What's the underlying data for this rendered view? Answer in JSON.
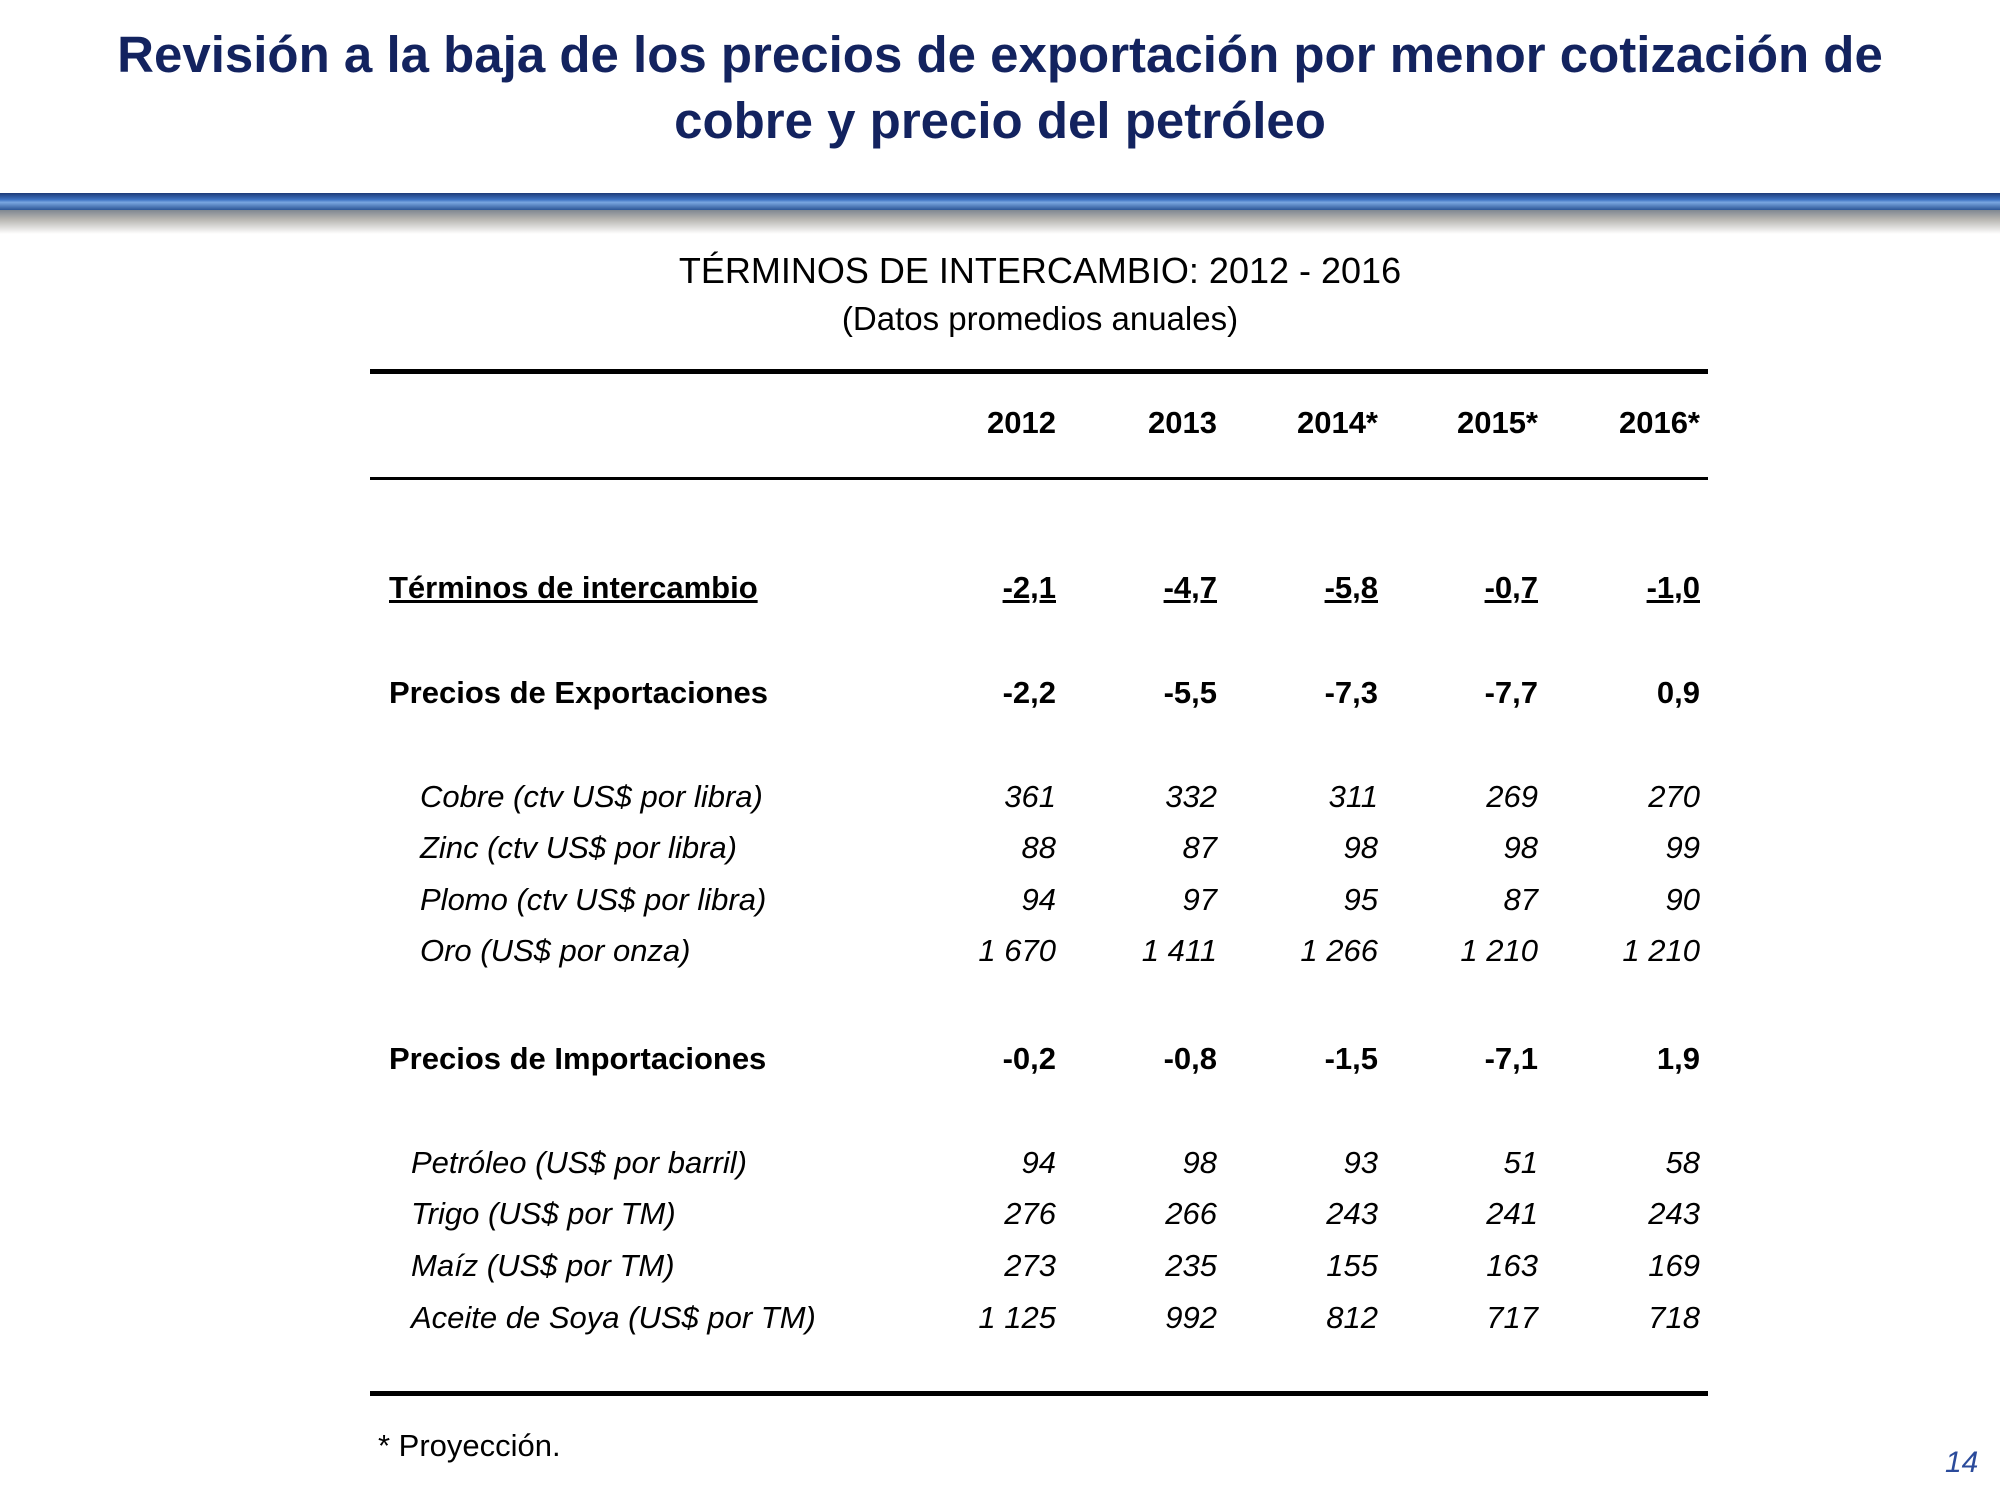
{
  "title_line1": "Revisión a la baja de los precios de exportación por menor cotización de",
  "title_line2": "cobre y precio del petróleo",
  "table": {
    "title": "TÉRMINOS DE INTERCAMBIO: 2012 - 2016",
    "subtitle": "(Datos promedios anuales)",
    "columns": [
      "2012",
      "2013",
      "2014*",
      "2015*",
      "2016*"
    ],
    "rows": [
      {
        "label": "Términos de intercambio",
        "values": [
          "-2,1",
          "-4,7",
          "-5,8",
          "-0,7",
          "-1,0"
        ]
      },
      {
        "label": "Precios de Exportaciones",
        "values": [
          "-2,2",
          "-5,5",
          "-7,3",
          "-7,7",
          "0,9"
        ]
      },
      {
        "label": "Cobre (ctv US$ por libra)",
        "values": [
          "361",
          "332",
          "311",
          "269",
          "270"
        ]
      },
      {
        "label": "Zinc (ctv US$ por libra)",
        "values": [
          "88",
          "87",
          "98",
          "98",
          "99"
        ]
      },
      {
        "label": "Plomo (ctv US$ por libra)",
        "values": [
          "94",
          "97",
          "95",
          "87",
          "90"
        ]
      },
      {
        "label": "Oro (US$ por onza)",
        "values": [
          "1 670",
          "1 411",
          "1 266",
          "1 210",
          "1 210"
        ]
      },
      {
        "label": "Precios de Importaciones",
        "values": [
          "-0,2",
          "-0,8",
          "-1,5",
          "-7,1",
          "1,9"
        ]
      },
      {
        "label": "Petróleo (US$ por barril)",
        "values": [
          "94",
          "98",
          "93",
          "51",
          "58"
        ]
      },
      {
        "label": "Trigo (US$ por TM)",
        "values": [
          "276",
          "266",
          "243",
          "241",
          "243"
        ]
      },
      {
        "label": "Maíz (US$ por TM)",
        "values": [
          "273",
          "235",
          "155",
          "163",
          "169"
        ]
      },
      {
        "label": "Aceite de Soya (US$ por TM)",
        "values": [
          "1 125",
          "992",
          "812",
          "717",
          "718"
        ]
      }
    ],
    "footnote": "* Proyección."
  },
  "page_number": "14"
}
